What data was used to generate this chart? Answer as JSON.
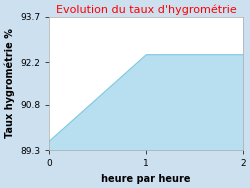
{
  "title": "Evolution du taux d'hygrométrie",
  "title_color": "#ff0000",
  "xlabel": "heure par heure",
  "ylabel": "Taux hygrométrie %",
  "x": [
    0,
    1,
    2
  ],
  "y": [
    89.6,
    92.45,
    92.45
  ],
  "fill_color": "#b8dff0",
  "fill_alpha": 1.0,
  "line_color": "#7ec8e3",
  "line_width": 0.8,
  "ylim": [
    89.3,
    93.7
  ],
  "xlim": [
    0,
    2
  ],
  "yticks": [
    89.3,
    90.8,
    92.2,
    93.7
  ],
  "xticks": [
    0,
    1,
    2
  ],
  "figure_background": "#cde0f0",
  "axes_background": "#ffffff",
  "title_fontsize": 8,
  "axis_fontsize": 7,
  "tick_fontsize": 6.5
}
